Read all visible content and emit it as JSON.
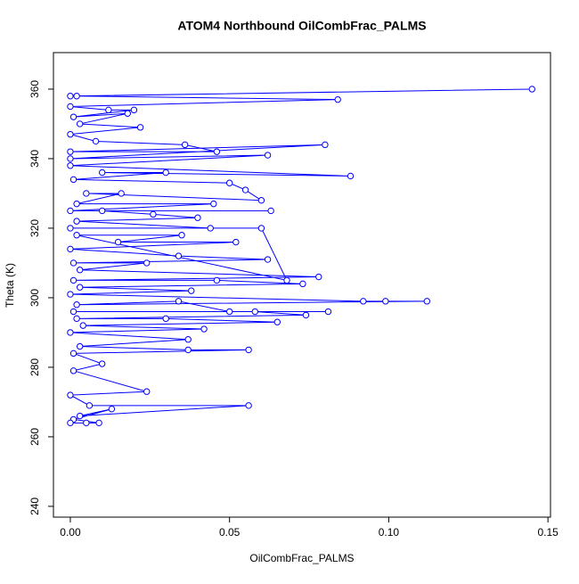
{
  "chart_data": {
    "type": "line",
    "title": "ATOM4 Northbound OilCombFrac_PALMS",
    "xlabel": "OilCombFrac_PALMS",
    "ylabel": "Theta (K)",
    "color": "#0000ff",
    "markers": true,
    "grid": false,
    "x": [
      0.0,
      0.145,
      0.002,
      0.084,
      0.0,
      0.012,
      0.02,
      0.001,
      0.018,
      0.003,
      0.022,
      0.0,
      0.008,
      0.036,
      0.046,
      0.0,
      0.08,
      0.0,
      0.062,
      0.0,
      0.088,
      0.01,
      0.03,
      0.001,
      0.05,
      0.055,
      0.06,
      0.005,
      0.016,
      0.002,
      0.045,
      0.0,
      0.063,
      0.01,
      0.026,
      0.04,
      0.002,
      0.044,
      0.0,
      0.06,
      0.068,
      0.002,
      0.035,
      0.015,
      0.052,
      0.0,
      0.034,
      0.062,
      0.001,
      0.024,
      0.003,
      0.078,
      0.001,
      0.046,
      0.073,
      0.003,
      0.038,
      0.0,
      0.092,
      0.099,
      0.112,
      0.002,
      0.034,
      0.05,
      0.081,
      0.001,
      0.058,
      0.074,
      0.002,
      0.03,
      0.065,
      0.004,
      0.042,
      0.0,
      0.037,
      0.003,
      0.037,
      0.056,
      0.001,
      0.01,
      0.001,
      0.024,
      0.0,
      0.006,
      0.056,
      0.003,
      0.013,
      0.001,
      0.009,
      0.0,
      0.005
    ],
    "values": [
      358,
      360,
      358,
      357,
      355,
      354,
      354,
      352,
      353,
      350,
      349,
      347,
      345,
      344,
      342,
      342,
      344,
      340,
      341,
      338,
      335,
      336,
      336,
      334,
      333,
      331,
      328,
      330,
      330,
      327,
      327,
      325,
      325,
      325,
      324,
      323,
      322,
      320,
      320,
      320,
      305,
      318,
      318,
      316,
      316,
      314,
      312,
      311,
      310,
      310,
      308,
      306,
      305,
      305,
      304,
      303,
      302,
      301,
      299,
      299,
      299,
      298,
      299,
      296,
      296,
      296,
      296,
      295,
      294,
      294,
      293,
      292,
      291,
      290,
      288,
      286,
      285,
      285,
      284,
      281,
      279,
      273,
      272,
      269,
      269,
      266,
      268,
      265,
      264,
      264,
      264
    ],
    "xlim": [
      -0.0053,
      0.1508
    ],
    "ylim": [
      236.9,
      370.5
    ],
    "xticks": [
      {
        "value": 0,
        "label": "0.00"
      },
      0.05,
      {
        "value": 0.1,
        "label": "0.10"
      },
      0.15
    ],
    "yticks": [
      240,
      260,
      280,
      300,
      320,
      340,
      360
    ]
  }
}
